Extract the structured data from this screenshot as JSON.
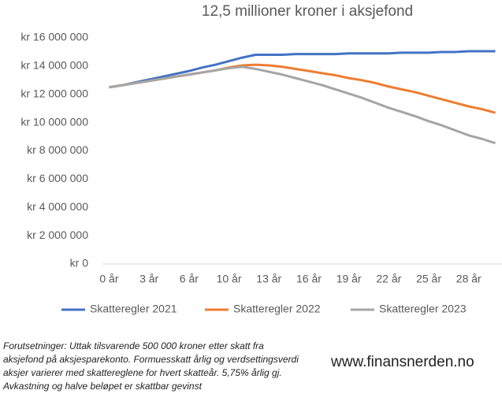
{
  "chart_data": {
    "type": "line",
    "title": "12,5 millioner kroner i aksjefond",
    "categories": [
      "0 år",
      null,
      null,
      "3 år",
      null,
      null,
      "6 år",
      null,
      null,
      "10 år",
      null,
      null,
      "13 år",
      null,
      null,
      "16 år",
      null,
      null,
      "19 år",
      null,
      null,
      "22 år",
      null,
      null,
      "25 år",
      null,
      null,
      "28 år",
      null,
      null
    ],
    "series": [
      {
        "name": "Skatteregler 2021",
        "color": "#4472c4",
        "values": [
          12500000,
          12650000,
          12850000,
          13050000,
          13250000,
          13450000,
          13650000,
          13900000,
          14100000,
          14350000,
          14600000,
          14800000,
          14800000,
          14800000,
          14850000,
          14850000,
          14850000,
          14850000,
          14900000,
          14900000,
          14900000,
          14900000,
          14950000,
          14950000,
          14950000,
          15000000,
          15000000,
          15050000,
          15050000,
          15050000
        ]
      },
      {
        "name": "Skatteregler 2022",
        "color": "#ed7d31",
        "values": [
          12500000,
          12650000,
          12800000,
          12950000,
          13100000,
          13250000,
          13400000,
          13550000,
          13700000,
          13900000,
          14050000,
          14100000,
          14050000,
          13950000,
          13800000,
          13650000,
          13500000,
          13350000,
          13150000,
          13000000,
          12800000,
          12550000,
          12350000,
          12150000,
          11900000,
          11650000,
          11400000,
          11150000,
          10950000,
          10700000
        ]
      },
      {
        "name": "Skatteregler 2023",
        "color": "#a5a5a5",
        "values": [
          12500000,
          12650000,
          12800000,
          12950000,
          13100000,
          13250000,
          13400000,
          13550000,
          13700000,
          13850000,
          13950000,
          13800000,
          13600000,
          13400000,
          13150000,
          12900000,
          12650000,
          12350000,
          12050000,
          11750000,
          11400000,
          11050000,
          10750000,
          10450000,
          10100000,
          9800000,
          9450000,
          9100000,
          8850000,
          8550000
        ]
      }
    ],
    "ylim": [
      0,
      16000000
    ],
    "yticks": [
      {
        "value": 0,
        "label": "kr 0"
      },
      {
        "value": 2000000,
        "label": "kr 2 000 000"
      },
      {
        "value": 4000000,
        "label": "kr 4 000 000"
      },
      {
        "value": 6000000,
        "label": "kr 6 000 000"
      },
      {
        "value": 8000000,
        "label": "kr 8 000 000"
      },
      {
        "value": 10000000,
        "label": "kr 10 000 000"
      },
      {
        "value": 12000000,
        "label": "kr 12 000 000"
      },
      {
        "value": 14000000,
        "label": "kr 14 000 000"
      },
      {
        "value": 16000000,
        "label": "kr 16 000 000"
      }
    ],
    "legend": "bottom",
    "notes": [
      "Forutsetninger: Uttak tilsvarende 500 000 kroner etter skatt fra",
      "aksjefond på aksjesparekonto. Formuesskatt årlig og verdsettingsverdi",
      "aksjer varierer med skattereglene for hvert skatteår. 5,75% årlig gj.",
      "Avkastning og halve beløpet er skattbar gevinst"
    ],
    "source": "www.finansnerden.no"
  }
}
